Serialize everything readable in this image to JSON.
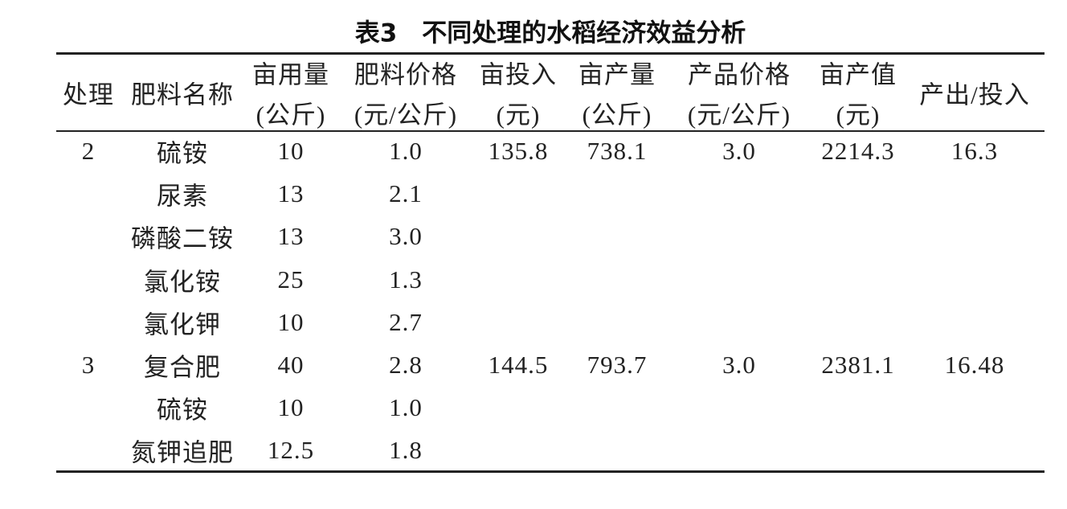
{
  "title": "表3　不同处理的水稻经济效益分析",
  "table": {
    "columns": [
      [
        "处理"
      ],
      [
        "肥料名称"
      ],
      [
        "亩用量",
        "(公斤)"
      ],
      [
        "肥料价格",
        "(元/公斤)"
      ],
      [
        "亩投入",
        "(元)"
      ],
      [
        "亩产量",
        "(公斤)"
      ],
      [
        "产品价格",
        "(元/公斤)"
      ],
      [
        "亩产值",
        "(元)"
      ],
      [
        "产出/投入"
      ]
    ],
    "rows": [
      [
        "2",
        "硫铵",
        "10",
        "1.0",
        "135.8",
        "738.1",
        "3.0",
        "2214.3",
        "16.3"
      ],
      [
        null,
        "尿素",
        "13",
        "2.1",
        null,
        null,
        null,
        null,
        null
      ],
      [
        null,
        "磷酸二铵",
        "13",
        "3.0",
        null,
        null,
        null,
        null,
        null
      ],
      [
        null,
        "氯化铵",
        "25",
        "1.3",
        null,
        null,
        null,
        null,
        null
      ],
      [
        null,
        "氯化钾",
        "10",
        "2.7",
        null,
        null,
        null,
        null,
        null
      ],
      [
        "3",
        "复合肥",
        "40",
        "2.8",
        "144.5",
        "793.7",
        "3.0",
        "2381.1",
        "16.48"
      ],
      [
        null,
        "硫铵",
        "10",
        "1.0",
        null,
        null,
        null,
        null,
        null
      ],
      [
        null,
        "氮钾追肥",
        "12.5",
        "1.8",
        null,
        null,
        null,
        null,
        null
      ]
    ]
  }
}
